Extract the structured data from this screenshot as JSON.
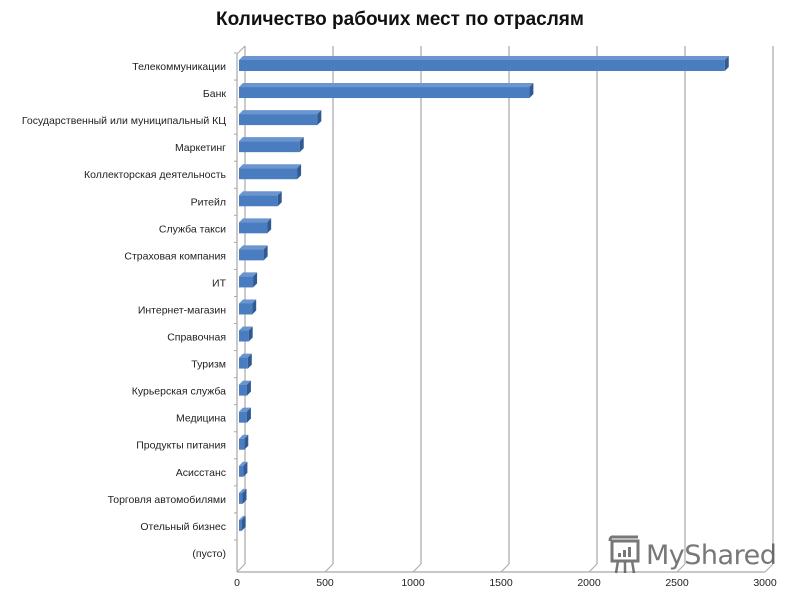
{
  "chart_data": {
    "type": "bar",
    "orientation": "horizontal",
    "style": "3d",
    "title": "Количество рабочих мест по отраслям",
    "xlabel": "",
    "ylabel": "",
    "xlim": [
      0,
      3000
    ],
    "x_ticks": [
      0,
      500,
      1000,
      1500,
      2000,
      2500,
      3000
    ],
    "grid": true,
    "legend": null,
    "bar_color": "#4a7cc0",
    "categories": [
      "Телекоммуникации",
      "Банк",
      "Государственный или муниципальный  КЦ",
      "Маркетинг",
      "Коллекторская деятельность",
      "Ритейл",
      "Служба такси",
      "Страховая компания",
      "ИТ",
      "Интернет-магазин",
      "Справочная",
      "Туризм",
      "Курьерская служба",
      "Медицина",
      "Продукты питания",
      "Асисстанс",
      "Торговля автомобилями",
      "Отельный  бизнес",
      "(пусто)"
    ],
    "values": [
      2760,
      1650,
      445,
      345,
      330,
      220,
      160,
      140,
      80,
      75,
      55,
      50,
      45,
      45,
      30,
      25,
      20,
      15,
      0
    ]
  },
  "watermark": {
    "text": "MyShared",
    "icon": "presentation-board-icon"
  }
}
